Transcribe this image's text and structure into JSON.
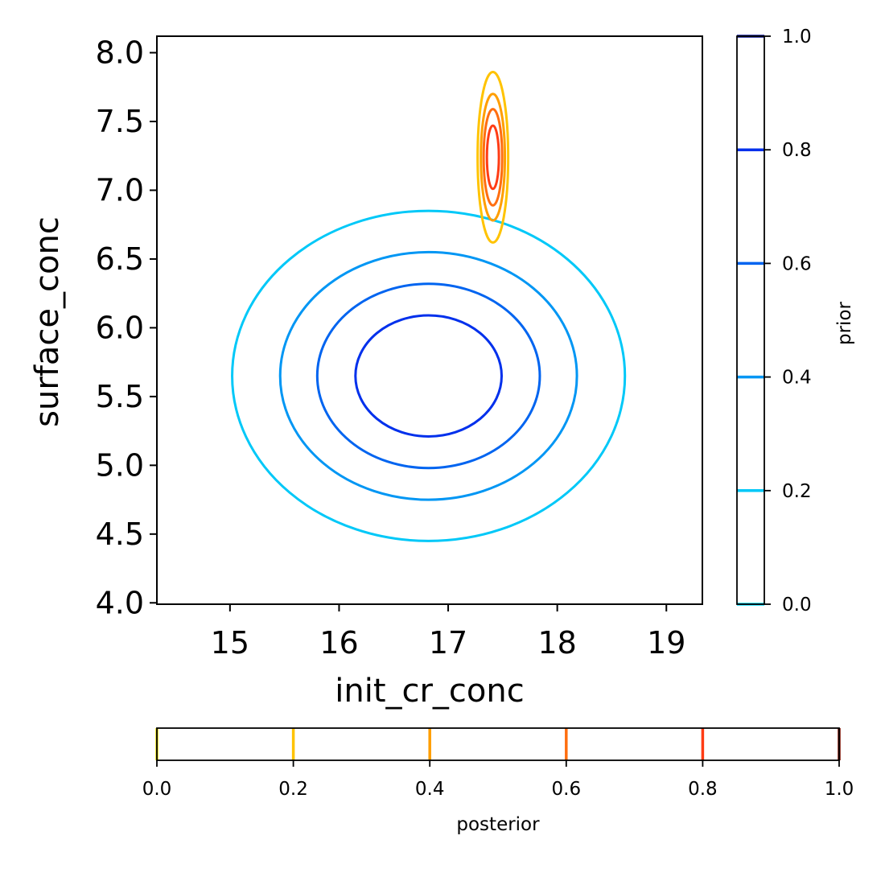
{
  "chart_data": {
    "type": "contour",
    "xlabel": "init_cr_conc",
    "ylabel": "surface_conc",
    "xlim": [
      14.33,
      19.33
    ],
    "ylim": [
      3.99,
      8.12
    ],
    "x_ticks": [
      "15",
      "16",
      "17",
      "18",
      "19"
    ],
    "y_ticks": [
      "4.0",
      "4.5",
      "5.0",
      "5.5",
      "6.0",
      "6.5",
      "7.0",
      "7.5",
      "8.0"
    ],
    "series": [
      {
        "name": "prior",
        "center": [
          16.82,
          5.65
        ],
        "contours": [
          {
            "level": 0.2,
            "color": "#00c8f8",
            "x_half_width": 1.8,
            "y_half_height": 1.2
          },
          {
            "level": 0.4,
            "color": "#0096f4",
            "x_half_width": 1.36,
            "y_half_height": 0.9
          },
          {
            "level": 0.6,
            "color": "#0064f0",
            "x_half_width": 1.02,
            "y_half_height": 0.67
          },
          {
            "level": 0.8,
            "color": "#0030ec",
            "x_half_width": 0.67,
            "y_half_height": 0.44
          }
        ]
      },
      {
        "name": "posterior",
        "center": [
          17.41,
          7.24
        ],
        "contours": [
          {
            "level": 0.2,
            "color": "#ffc300",
            "x_half_width": 0.14,
            "y_half_height": 0.62
          },
          {
            "level": 0.4,
            "color": "#ff9e00",
            "x_half_width": 0.11,
            "y_half_height": 0.46
          },
          {
            "level": 0.6,
            "color": "#ff6e10",
            "x_half_width": 0.085,
            "y_half_height": 0.35
          },
          {
            "level": 0.8,
            "color": "#ff3c14",
            "x_half_width": 0.055,
            "y_half_height": 0.23
          }
        ]
      }
    ],
    "colorbars": [
      {
        "label": "prior",
        "orientation": "vertical",
        "placement": "right",
        "range": [
          0.0,
          1.0
        ],
        "ticks": [
          "0.0",
          "0.2",
          "0.4",
          "0.6",
          "0.8",
          "1.0"
        ],
        "levels": [
          {
            "value": 0.0,
            "color": "#00e0ff"
          },
          {
            "value": 0.2,
            "color": "#00c8f8"
          },
          {
            "value": 0.4,
            "color": "#0096f4"
          },
          {
            "value": 0.6,
            "color": "#0064f0"
          },
          {
            "value": 0.8,
            "color": "#0030ec"
          },
          {
            "value": 1.0,
            "color": "#000c90"
          }
        ]
      },
      {
        "label": "posterior",
        "orientation": "horizontal",
        "placement": "bottom",
        "range": [
          0.0,
          1.0
        ],
        "ticks": [
          "0.0",
          "0.2",
          "0.4",
          "0.6",
          "0.8",
          "1.0"
        ],
        "levels": [
          {
            "value": 0.0,
            "color": "#e8e000"
          },
          {
            "value": 0.2,
            "color": "#ffc300"
          },
          {
            "value": 0.4,
            "color": "#ff9e00"
          },
          {
            "value": 0.6,
            "color": "#ff6e10"
          },
          {
            "value": 0.8,
            "color": "#ff3c14"
          },
          {
            "value": 1.0,
            "color": "#801000"
          }
        ]
      }
    ]
  }
}
